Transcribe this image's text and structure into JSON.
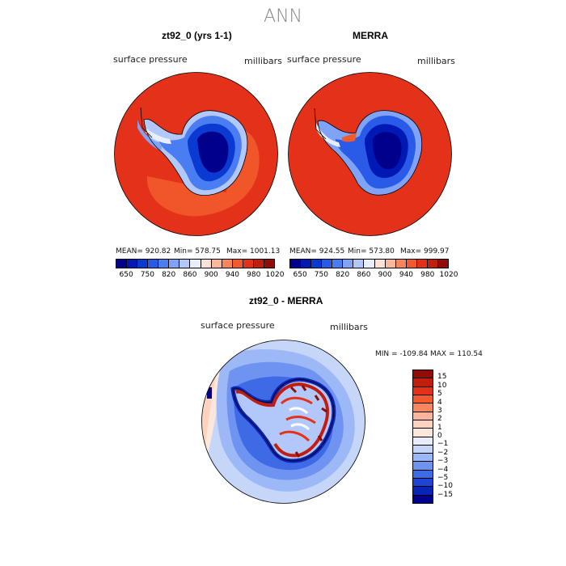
{
  "figure": {
    "title": "ANN"
  },
  "panels": [
    {
      "title": "zt92_0 (yrs 1-1)",
      "variable": "surface pressure",
      "units": "millibars",
      "stats": {
        "mean": "MEAN= 920.82",
        "min": "Min= 578.75",
        "max": "Max= 1001.13"
      }
    },
    {
      "title": "MERRA",
      "variable": "surface pressure",
      "units": "millibars",
      "stats": {
        "mean": "MEAN= 924.55",
        "min": "Min= 573.80",
        "max": "Max= 999.97"
      }
    }
  ],
  "top_colorbar": {
    "colors": [
      "#00008c",
      "#0018b4",
      "#0a3ad2",
      "#2a5ae8",
      "#4a7cf2",
      "#7fa4f7",
      "#b3c8fa",
      "#e8eefc",
      "#fde0d6",
      "#fbb79e",
      "#f7865f",
      "#f25a2e",
      "#e4321a",
      "#c21e10",
      "#920c08"
    ],
    "tick_labels": [
      "650",
      "750",
      "820",
      "860",
      "900",
      "940",
      "980",
      "1020"
    ]
  },
  "diff_panel": {
    "title": "zt92_0 - MERRA",
    "variable": "surface pressure",
    "units": "millibars",
    "minmax": "MIN = -109.84 MAX = 110.54"
  },
  "diff_colorbar": {
    "colors": [
      "#920c08",
      "#c21e10",
      "#e4321a",
      "#f25a2e",
      "#f7865f",
      "#fbb79e",
      "#fdd3c0",
      "#fbe7dc",
      "#e8eefc",
      "#c6d6f9",
      "#9cb8f6",
      "#6e93f0",
      "#3f6ae6",
      "#1f44d4",
      "#0a24b6",
      "#00008c"
    ],
    "tick_labels": [
      "15",
      "10",
      "5",
      "4",
      "3",
      "2",
      "1",
      "0",
      "−1",
      "−2",
      "−3",
      "−4",
      "−5",
      "−10",
      "−15"
    ]
  }
}
